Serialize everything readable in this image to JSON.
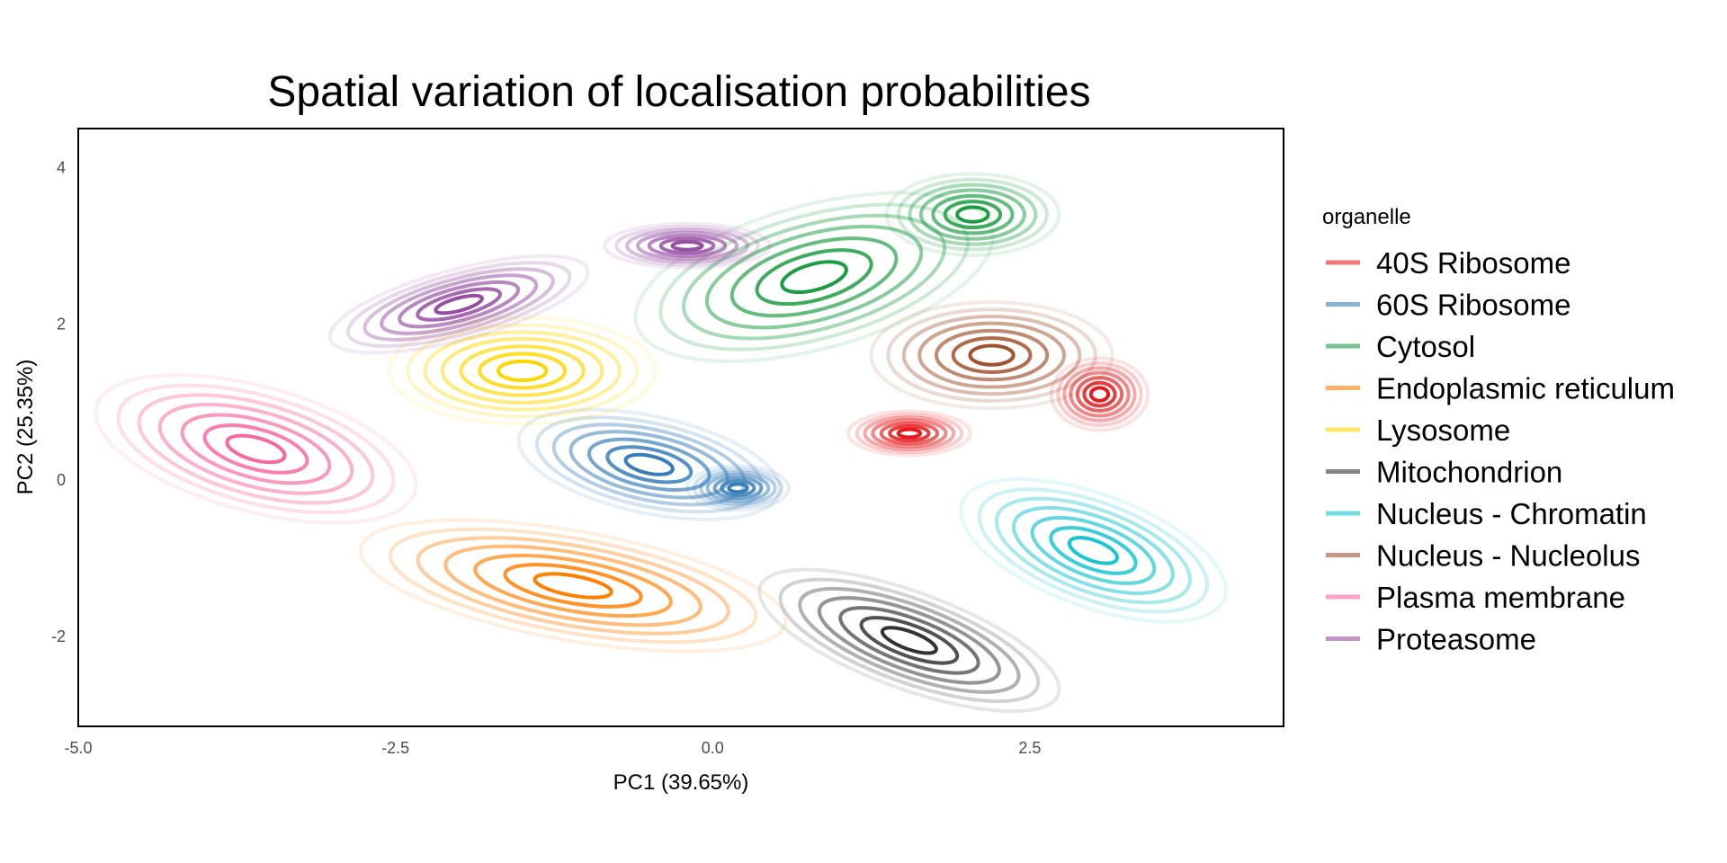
{
  "chart_data": {
    "type": "contour",
    "title": "Spatial variation of localisation probabilities",
    "xlabel": "PC1 (39.65%)",
    "ylabel": "PC2 (25.35%)",
    "xlim": [
      -5.0,
      4.5
    ],
    "ylim": [
      -3.15,
      4.5
    ],
    "x_ticks": [
      -5.0,
      -2.5,
      0.0,
      2.5
    ],
    "x_tick_labels": [
      "-5.0",
      "-2.5",
      "0.0",
      "2.5"
    ],
    "y_ticks": [
      -2,
      0,
      2,
      4
    ],
    "y_tick_labels": [
      "-2",
      "0",
      "2",
      "4"
    ],
    "grid": false,
    "legend": {
      "title": "organelle",
      "position": "right"
    },
    "series": [
      {
        "name": "40S Ribosome",
        "color": "#e41a1c",
        "peaks": [
          {
            "x": 3.05,
            "y": 1.1,
            "rx": 0.38,
            "ry": 0.46,
            "rot": 0
          },
          {
            "x": 1.55,
            "y": 0.6,
            "rx": 0.48,
            "ry": 0.28,
            "rot": 0
          }
        ]
      },
      {
        "name": "60S Ribosome",
        "color": "#377eb8",
        "peaks": [
          {
            "x": -0.5,
            "y": 0.2,
            "rx": 1.05,
            "ry": 0.62,
            "rot": -12
          },
          {
            "x": 0.2,
            "y": -0.1,
            "rx": 0.4,
            "ry": 0.28,
            "rot": 0
          }
        ]
      },
      {
        "name": "Cytosol",
        "color": "#1b9e43",
        "peaks": [
          {
            "x": 0.8,
            "y": 2.6,
            "rx": 1.45,
            "ry": 0.92,
            "rot": 15
          },
          {
            "x": 2.05,
            "y": 3.4,
            "rx": 0.68,
            "ry": 0.52,
            "rot": 0
          }
        ]
      },
      {
        "name": "Endoplasmic reticulum",
        "color": "#ff7f00",
        "peaks": [
          {
            "x": -1.1,
            "y": -1.35,
            "rx": 1.7,
            "ry": 0.7,
            "rot": -10
          }
        ]
      },
      {
        "name": "Lysosome",
        "color": "#ffd700",
        "peaks": [
          {
            "x": -1.5,
            "y": 1.4,
            "rx": 1.05,
            "ry": 0.68,
            "rot": 0
          }
        ]
      },
      {
        "name": "Mitochondrion",
        "color": "#333333",
        "peaks": [
          {
            "x": 1.55,
            "y": -2.05,
            "rx": 1.25,
            "ry": 0.62,
            "rot": -20
          }
        ]
      },
      {
        "name": "Nucleus - Chromatin",
        "color": "#17c6cf",
        "peaks": [
          {
            "x": 3.0,
            "y": -0.9,
            "rx": 1.1,
            "ry": 0.72,
            "rot": -20
          }
        ]
      },
      {
        "name": "Nucleus - Nucleolus",
        "color": "#a0522d",
        "peaks": [
          {
            "x": 2.2,
            "y": 1.6,
            "rx": 0.95,
            "ry": 0.68,
            "rot": 0
          }
        ]
      },
      {
        "name": "Plasma membrane",
        "color": "#f768a1",
        "peaks": [
          {
            "x": -3.6,
            "y": 0.4,
            "rx": 1.3,
            "ry": 0.8,
            "rot": -15
          }
        ]
      },
      {
        "name": "Proteasome",
        "color": "#984ea3",
        "peaks": [
          {
            "x": -2.0,
            "y": 2.25,
            "rx": 1.05,
            "ry": 0.45,
            "rot": 15
          },
          {
            "x": -0.2,
            "y": 3.0,
            "rx": 0.65,
            "ry": 0.28,
            "rot": 0
          }
        ]
      }
    ]
  }
}
